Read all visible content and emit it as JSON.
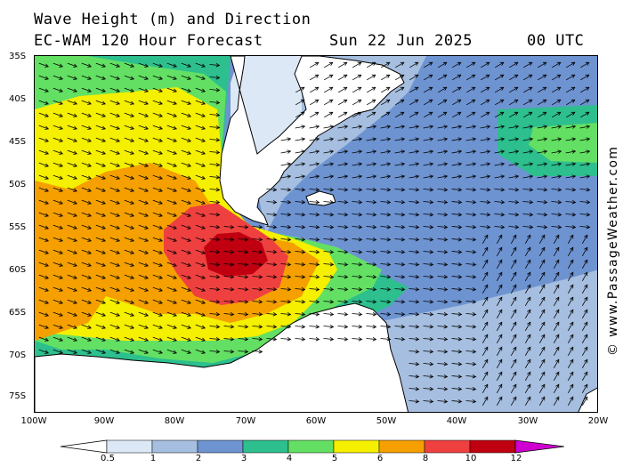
{
  "title": {
    "line1": "Wave Height (m) and Direction",
    "model": "EC-WAM 120 Hour Forecast",
    "date": "Sun 22 Jun 2025",
    "time": "00 UTC"
  },
  "credit": "© www.PassageWeather.com",
  "lat_labels": [
    "35S",
    "40S",
    "45S",
    "50S",
    "55S",
    "60S",
    "65S",
    "70S",
    "75S"
  ],
  "lon_labels": [
    "100W",
    "90W",
    "80W",
    "70W",
    "60W",
    "50W",
    "40W",
    "30W",
    "20W"
  ],
  "colors": {
    "0.5": "#dce8f5",
    "1": "#a6bfe0",
    "2": "#6e93d1",
    "3": "#2dbf8e",
    "4": "#63e063",
    "5": "#f5ef00",
    "6": "#f5a000",
    "8": "#ef4040",
    "10": "#c00010",
    "12": "#d000d0",
    "land": "#ffffff",
    "coast": "#000000"
  },
  "legend": {
    "labels": [
      "0.5",
      "1",
      "2",
      "3",
      "4",
      "5",
      "6",
      "8",
      "10",
      "12"
    ]
  }
}
